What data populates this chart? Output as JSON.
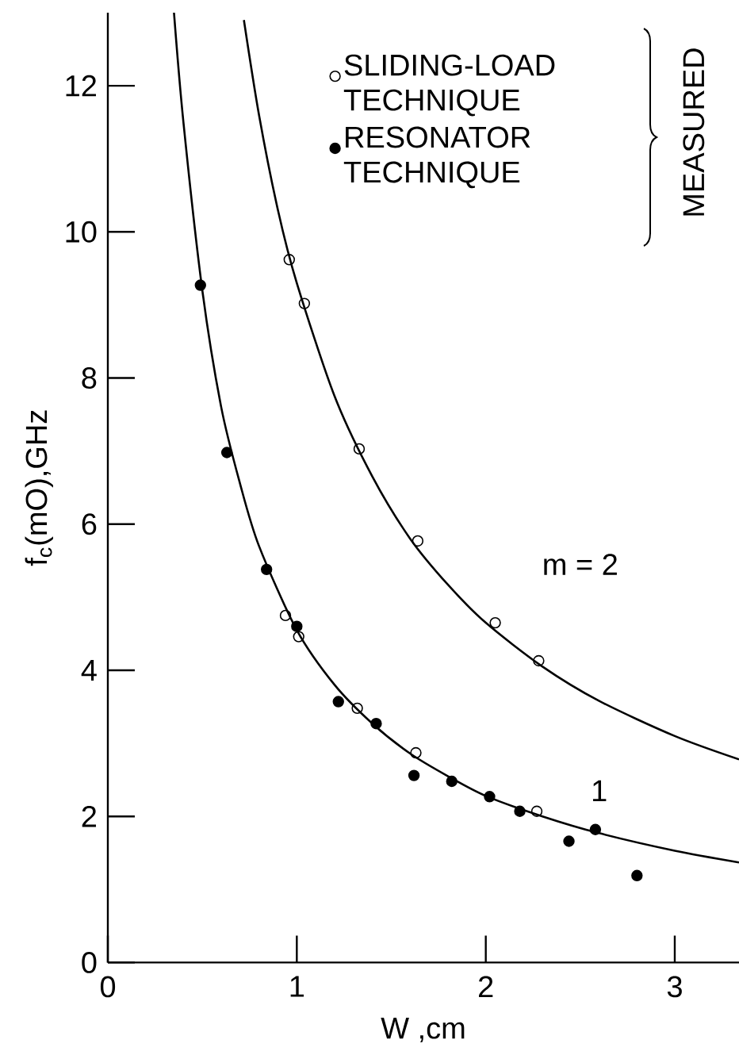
{
  "chart_data": {
    "type": "scatter",
    "xlabel": "W ,cm",
    "ylabel": "f$_{c}$(mO),GHz",
    "xlim": [
      0,
      3.34
    ],
    "ylim": [
      0,
      13
    ],
    "xticks": [
      0,
      1,
      2,
      3
    ],
    "yticks": [
      0,
      2,
      4,
      6,
      8,
      10,
      12
    ],
    "legend": "top right",
    "marker": "circle",
    "grid": false,
    "annotations": [
      "m = 2",
      "1",
      "MEASURED"
    ],
    "series": [
      {
        "name": "SLIDING-LOAD TECHNIQUE",
        "color": "#ffffff",
        "x": [
          0.96,
          1.04,
          1.33,
          1.64,
          2.05,
          2.28,
          0.94,
          1.01,
          1.32,
          1.63,
          2.27
        ],
        "values": [
          9.62,
          9.02,
          7.03,
          5.77,
          4.65,
          4.13,
          4.75,
          4.46,
          3.48,
          2.87,
          2.07
        ]
      },
      {
        "name": "RESONATOR TECHNIQUE",
        "color": "#000000",
        "x": [
          0.49,
          0.63,
          0.84,
          1.0,
          1.22,
          1.42,
          1.62,
          1.82,
          2.02,
          2.18,
          2.44,
          2.58,
          2.8
        ],
        "values": [
          9.27,
          6.98,
          5.38,
          4.6,
          3.57,
          3.27,
          2.56,
          2.48,
          2.27,
          2.07,
          1.66,
          1.82,
          1.19
        ]
      },
      {
        "type": "line",
        "color": "#000000",
        "marker": "none",
        "x": [
          0.72,
          0.8,
          0.9,
          1.0,
          1.2,
          1.4,
          1.6,
          1.8,
          2.0,
          2.3,
          2.6,
          3.0,
          3.34
        ],
        "values": [
          12.9,
          11.6,
          10.3,
          9.3,
          7.75,
          6.65,
          5.8,
          5.17,
          4.65,
          4.05,
          3.58,
          3.1,
          2.78
        ]
      },
      {
        "type": "line",
        "color": "#000000",
        "marker": "none",
        "x": [
          0.35,
          0.4,
          0.5,
          0.6,
          0.7,
          0.8,
          1.0,
          1.2,
          1.4,
          1.6,
          1.8,
          2.0,
          2.3,
          2.6,
          3.0,
          3.34
        ],
        "values": [
          13.0,
          11.5,
          9.2,
          7.6,
          6.55,
          5.7,
          4.55,
          3.8,
          3.27,
          2.86,
          2.55,
          2.28,
          2.0,
          1.77,
          1.53,
          1.37
        ]
      }
    ]
  }
}
